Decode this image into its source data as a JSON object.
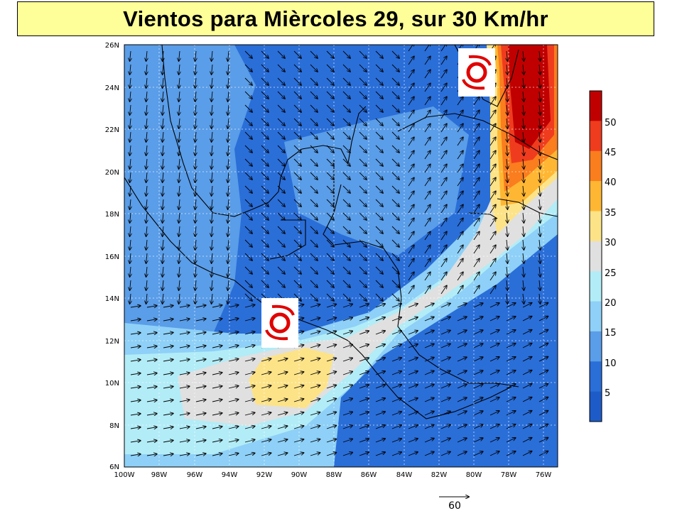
{
  "title": "Vientos para Mièrcoles 29, sur 30 Km/hr",
  "map": {
    "lat_labels": [
      "26N",
      "24N",
      "22N",
      "20N",
      "18N",
      "16N",
      "14N",
      "12N",
      "10N",
      "8N",
      "6N"
    ],
    "lon_labels": [
      "100W",
      "98W",
      "96W",
      "94W",
      "92W",
      "90W",
      "88W",
      "86W",
      "84W",
      "82W",
      "80W",
      "78W",
      "76W"
    ],
    "lat_range": [
      6,
      26
    ],
    "lon_range": [
      -100,
      -75
    ]
  },
  "colorbar": {
    "levels": [
      "50",
      "45",
      "40",
      "35",
      "30",
      "25",
      "20",
      "15",
      "10",
      "5"
    ],
    "colors": [
      "#c00000",
      "#ef3c1e",
      "#fa7d1e",
      "#ffb733",
      "#fde388",
      "#e0e0e0",
      "#b2ecf7",
      "#8ed0f7",
      "#5a9de8",
      "#2a6ed8",
      "#1d5cc8"
    ]
  },
  "storm_markers": [
    {
      "name": "hurricane-symbol-east",
      "lon": -79.2,
      "lat": 24.8
    },
    {
      "name": "hurricane-symbol-west",
      "lon": -91.3,
      "lat": 12.7
    }
  ],
  "reference_vector": {
    "label": "60"
  }
}
